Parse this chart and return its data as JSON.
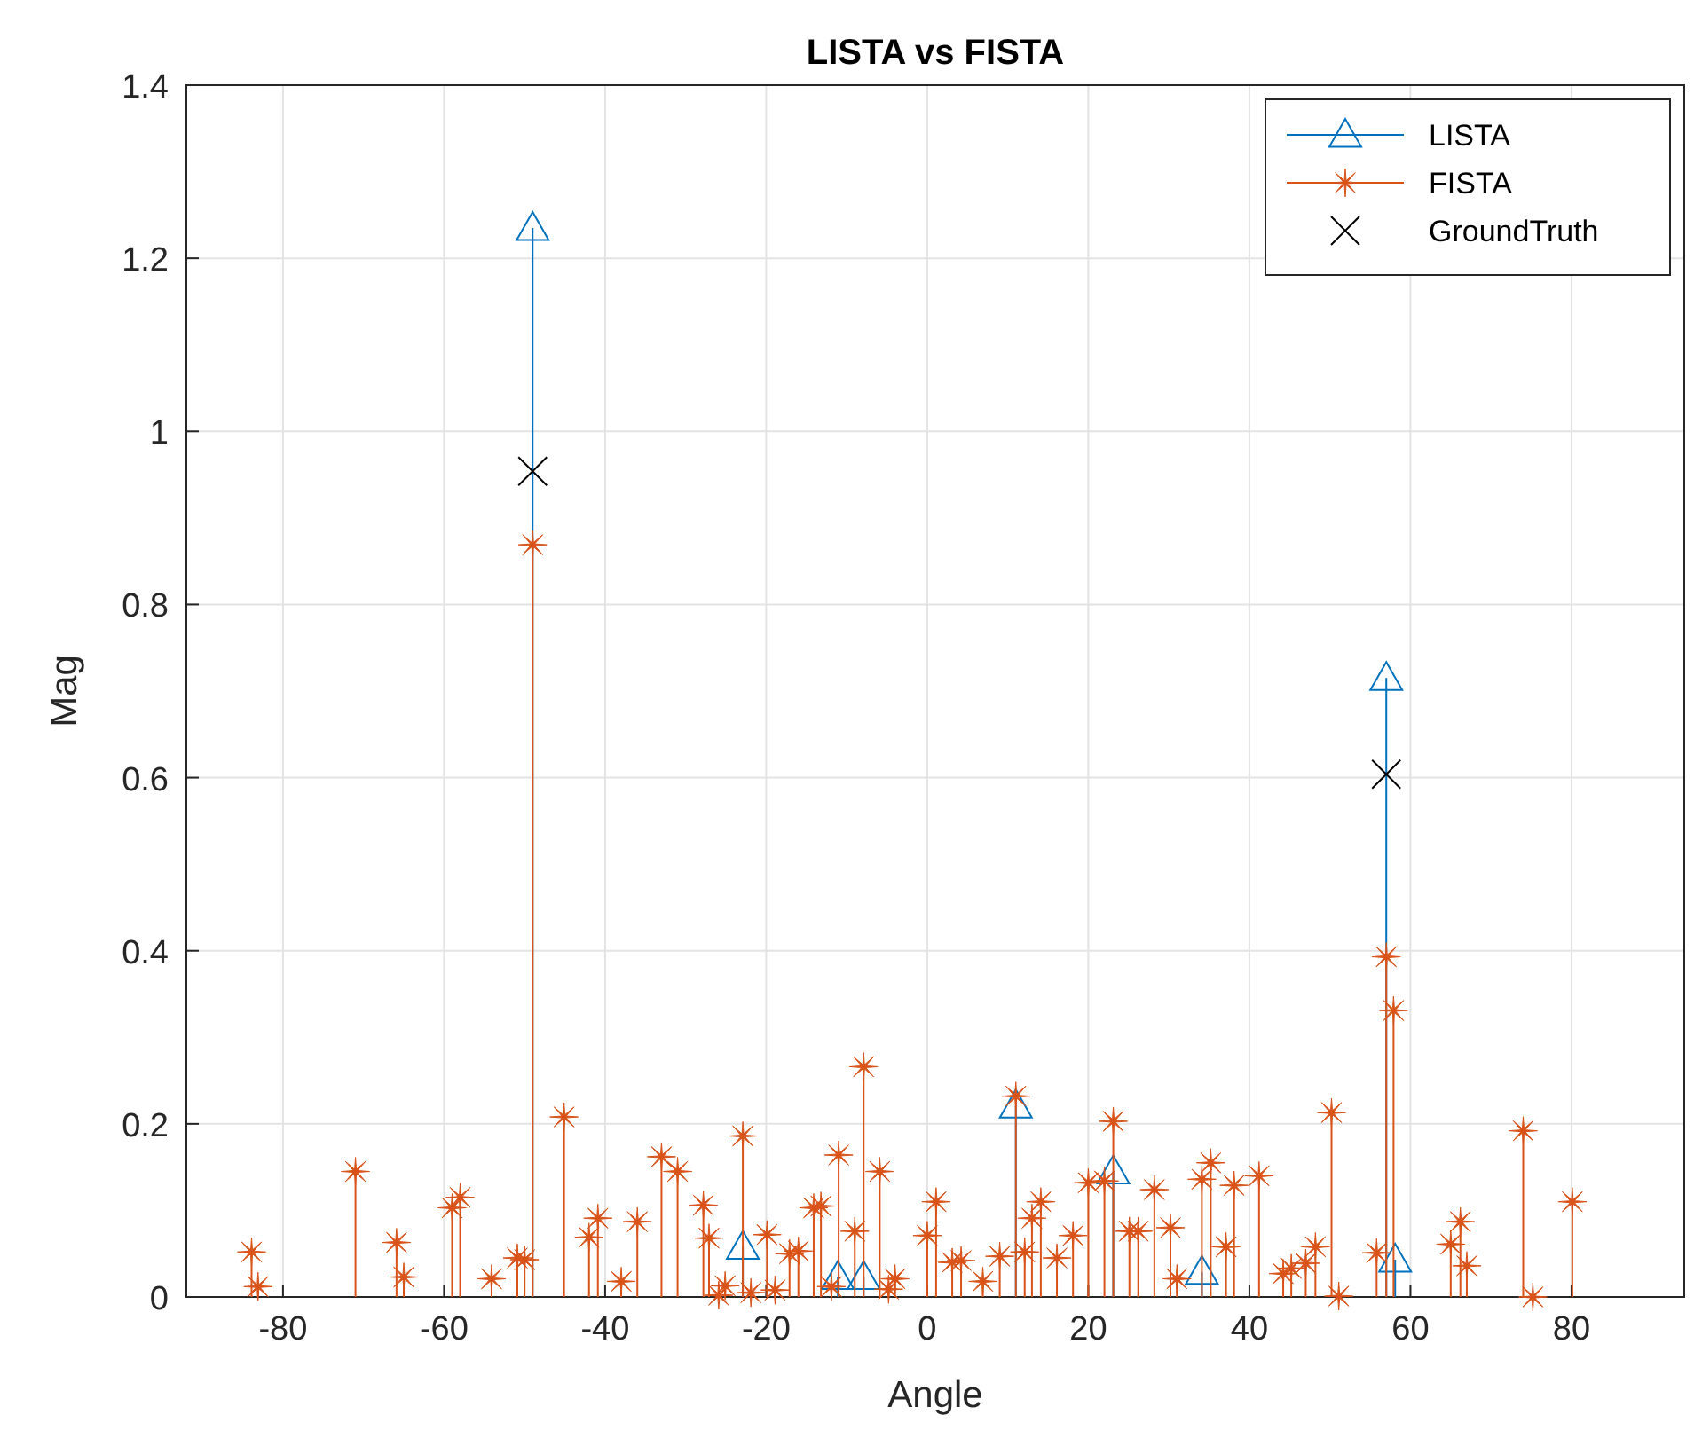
{
  "chart_data": {
    "type": "lollipop",
    "title": "LISTA vs FISTA",
    "xlabel": "Angle",
    "ylabel": "Mag",
    "xlim": [
      -92,
      94
    ],
    "xticks": [
      -80,
      -60,
      -40,
      -20,
      0,
      20,
      40,
      60,
      80
    ],
    "ylim": [
      0,
      1.4
    ],
    "yticks": [
      0,
      0.2,
      0.4,
      0.6,
      0.8,
      1,
      1.2,
      1.4
    ],
    "grid": true,
    "legend": "top right",
    "series": [
      {
        "name": "LISTA",
        "marker": "triangle",
        "color": "#0072bd",
        "x": [
          -49,
          -22.9,
          -11.1,
          -7.9,
          11,
          23.1,
          34.1,
          57,
          58.1
        ],
        "values": [
          1.235,
          0.058,
          0.023,
          0.023,
          0.221,
          0.145,
          0.029,
          0.715,
          0.043
        ]
      },
      {
        "name": "FISTA",
        "marker": "star",
        "color": "#d95319",
        "x": [
          -83.9,
          -83.1,
          -71,
          -65.9,
          -65,
          -59,
          -58,
          -54.1,
          -50.9,
          -50,
          -49,
          -45.1,
          -42,
          -40.9,
          -38,
          -36,
          -33,
          -31,
          -27.8,
          -27.1,
          -25.9,
          -25.1,
          -22.9,
          -21.9,
          -19.9,
          -18.9,
          -17.1,
          -16,
          -14.1,
          -13.2,
          -11.9,
          -11,
          -9,
          -7.9,
          -5.9,
          -4.8,
          -4,
          0,
          1.1,
          3.1,
          4.2,
          6.9,
          9,
          11,
          12.1,
          13,
          14.1,
          16.1,
          18.1,
          20,
          22,
          23.1,
          25.1,
          26.2,
          28.2,
          30.2,
          31,
          34.1,
          35.2,
          37.1,
          38.1,
          41.2,
          44.2,
          45.2,
          47,
          48.2,
          50.2,
          51.1,
          55.8,
          57,
          57.9,
          65,
          66.2,
          67,
          74,
          75.2,
          80.1
        ],
        "values": [
          0.052,
          0.012,
          0.145,
          0.063,
          0.023,
          0.103,
          0.115,
          0.021,
          0.045,
          0.043,
          0.869,
          0.208,
          0.069,
          0.091,
          0.018,
          0.087,
          0.162,
          0.145,
          0.106,
          0.068,
          0.002,
          0.013,
          0.186,
          0.005,
          0.072,
          0.008,
          0.05,
          0.053,
          0.103,
          0.105,
          0.012,
          0.164,
          0.076,
          0.266,
          0.145,
          0.009,
          0.021,
          0.071,
          0.11,
          0.04,
          0.042,
          0.018,
          0.047,
          0.232,
          0.052,
          0.091,
          0.11,
          0.045,
          0.071,
          0.132,
          0.134,
          0.203,
          0.076,
          0.076,
          0.124,
          0.08,
          0.021,
          0.136,
          0.155,
          0.058,
          0.129,
          0.14,
          0.027,
          0.033,
          0.039,
          0.058,
          0.213,
          0.001,
          0.051,
          0.393,
          0.331,
          0.061,
          0.087,
          0.036,
          0.192,
          0.0,
          0.11
        ]
      },
      {
        "name": "GroundTruth",
        "type": "scatter",
        "marker": "cross",
        "color": "#000000",
        "x": [
          -49,
          57
        ],
        "values": [
          0.954,
          0.604
        ]
      }
    ]
  }
}
